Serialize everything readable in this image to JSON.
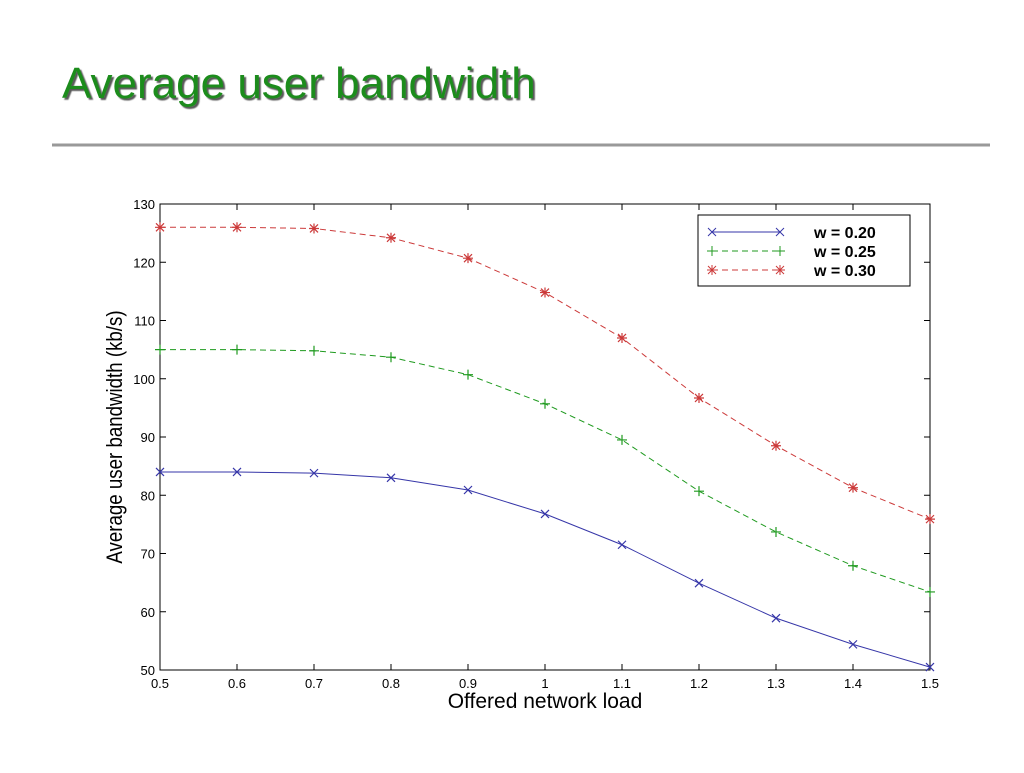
{
  "chart_data": {
    "type": "line",
    "title": "Average user bandwidth",
    "xlabel": "Offered network load",
    "ylabel": "Average user bandwidth (kb/s)",
    "x": [
      0.5,
      0.6,
      0.7,
      0.8,
      0.9,
      1,
      1.1,
      1.2,
      1.3,
      1.4,
      1.5
    ],
    "series": [
      {
        "name": "w = 0.20",
        "color": "#3636a8",
        "dash": "solid",
        "marker": "x",
        "values": [
          84,
          84,
          83.8,
          83,
          80.9,
          76.8,
          71.5,
          64.9,
          58.9,
          54.4,
          50.5
        ]
      },
      {
        "name": "w = 0.25",
        "color": "#1f9a1f",
        "dash": "dashed",
        "marker": "+",
        "values": [
          105,
          105,
          104.8,
          103.7,
          100.7,
          95.7,
          89.5,
          80.7,
          73.7,
          67.9,
          63.4
        ]
      },
      {
        "name": "w = 0.30",
        "color": "#cc3a3a",
        "dash": "dashed",
        "marker": "*",
        "values": [
          126,
          126,
          125.8,
          124.2,
          120.7,
          114.8,
          107,
          96.7,
          88.5,
          81.3,
          75.9
        ]
      }
    ],
    "xlim": [
      0.5,
      1.5
    ],
    "xticks": [
      0.5,
      0.6,
      0.7,
      0.8,
      0.9,
      1,
      1.1,
      1.2,
      1.3,
      1.4,
      1.5
    ],
    "ylim": [
      50,
      130
    ],
    "yticks": [
      50,
      60,
      70,
      80,
      90,
      100,
      110,
      120,
      130
    ],
    "grid": false,
    "legend": "upper right"
  }
}
